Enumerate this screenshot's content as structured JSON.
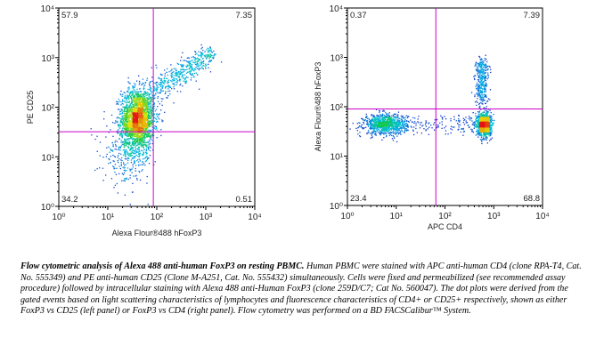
{
  "chart_data": [
    {
      "type": "scatter",
      "title": "",
      "xlabel": "Alexa Flour®488 hFoxP3",
      "ylabel": "PE CD25",
      "x_scale": "log",
      "y_scale": "log",
      "xlim": [
        1,
        10000
      ],
      "ylim": [
        1,
        10000
      ],
      "x_ticks": [
        "10⁰",
        "10¹",
        "10²",
        "10³",
        "10⁴"
      ],
      "y_ticks": [
        "10⁰",
        "10¹",
        "10²",
        "10³",
        "10⁴"
      ],
      "gate": {
        "x": 85,
        "y": 32
      },
      "gate_color": "#cc00cc",
      "quadrants": {
        "upper_left": "57.9",
        "upper_right": "7.35",
        "lower_left": "34.2",
        "lower_right": "0.51"
      },
      "populations": [
        {
          "x": 40,
          "y": 60,
          "note": "main cluster"
        },
        {
          "x": 300,
          "y": 400,
          "note": "diagonal tail"
        }
      ],
      "grid": false
    },
    {
      "type": "scatter",
      "title": "",
      "xlabel": "APC CD4",
      "ylabel": "Alexa Flour®488 hFoxP3",
      "x_scale": "log",
      "y_scale": "log",
      "xlim": [
        1,
        10000
      ],
      "ylim": [
        1,
        10000
      ],
      "x_ticks": [
        "10⁰",
        "10¹",
        "10²",
        "10³",
        "10⁴"
      ],
      "y_ticks": [
        "10⁰",
        "10¹",
        "10²",
        "10³",
        "10⁴"
      ],
      "gate": {
        "x": 65,
        "y": 90
      },
      "gate_color": "#cc00cc",
      "quadrants": {
        "upper_left": "0.37",
        "upper_right": "7.39",
        "lower_left": "23.4",
        "lower_right": "68.8"
      },
      "populations": [
        {
          "x": 6,
          "y": 45,
          "note": "CD4- cluster"
        },
        {
          "x": 600,
          "y": 45,
          "note": "CD4+ FoxP3- cluster"
        },
        {
          "x": 500,
          "y": 250,
          "note": "CD4+ FoxP3+ tail"
        }
      ],
      "grid": false
    }
  ],
  "caption": {
    "title": "Flow cytometric analysis of Alexa 488 anti-human FoxP3 on resting PBMC.",
    "body": " Human PBMC were stained with APC anti-human CD4 (clone RPA-T4, Cat. No. 555349) and PE anti-human CD25 (Clone  M-A251, Cat. No. 555432) simultaneously.  Cells were fixed and permeabilized (see recommended assay procedure) followed by intracellular staining with Alexa 488 anti-Human FoxP3 (clone 259D/C7; Cat No. 560047). The dot plots were derived from the gated events based on light scattering characteristics of lymphocytes and fluorescence characteristics of CD4+ or CD25+ respectively, shown as either FoxP3 vs CD25 (left panel) or FoxP3 vs CD4 (right panel). Flow cytometry was performed on a BD FACSCalibur™ System."
  }
}
